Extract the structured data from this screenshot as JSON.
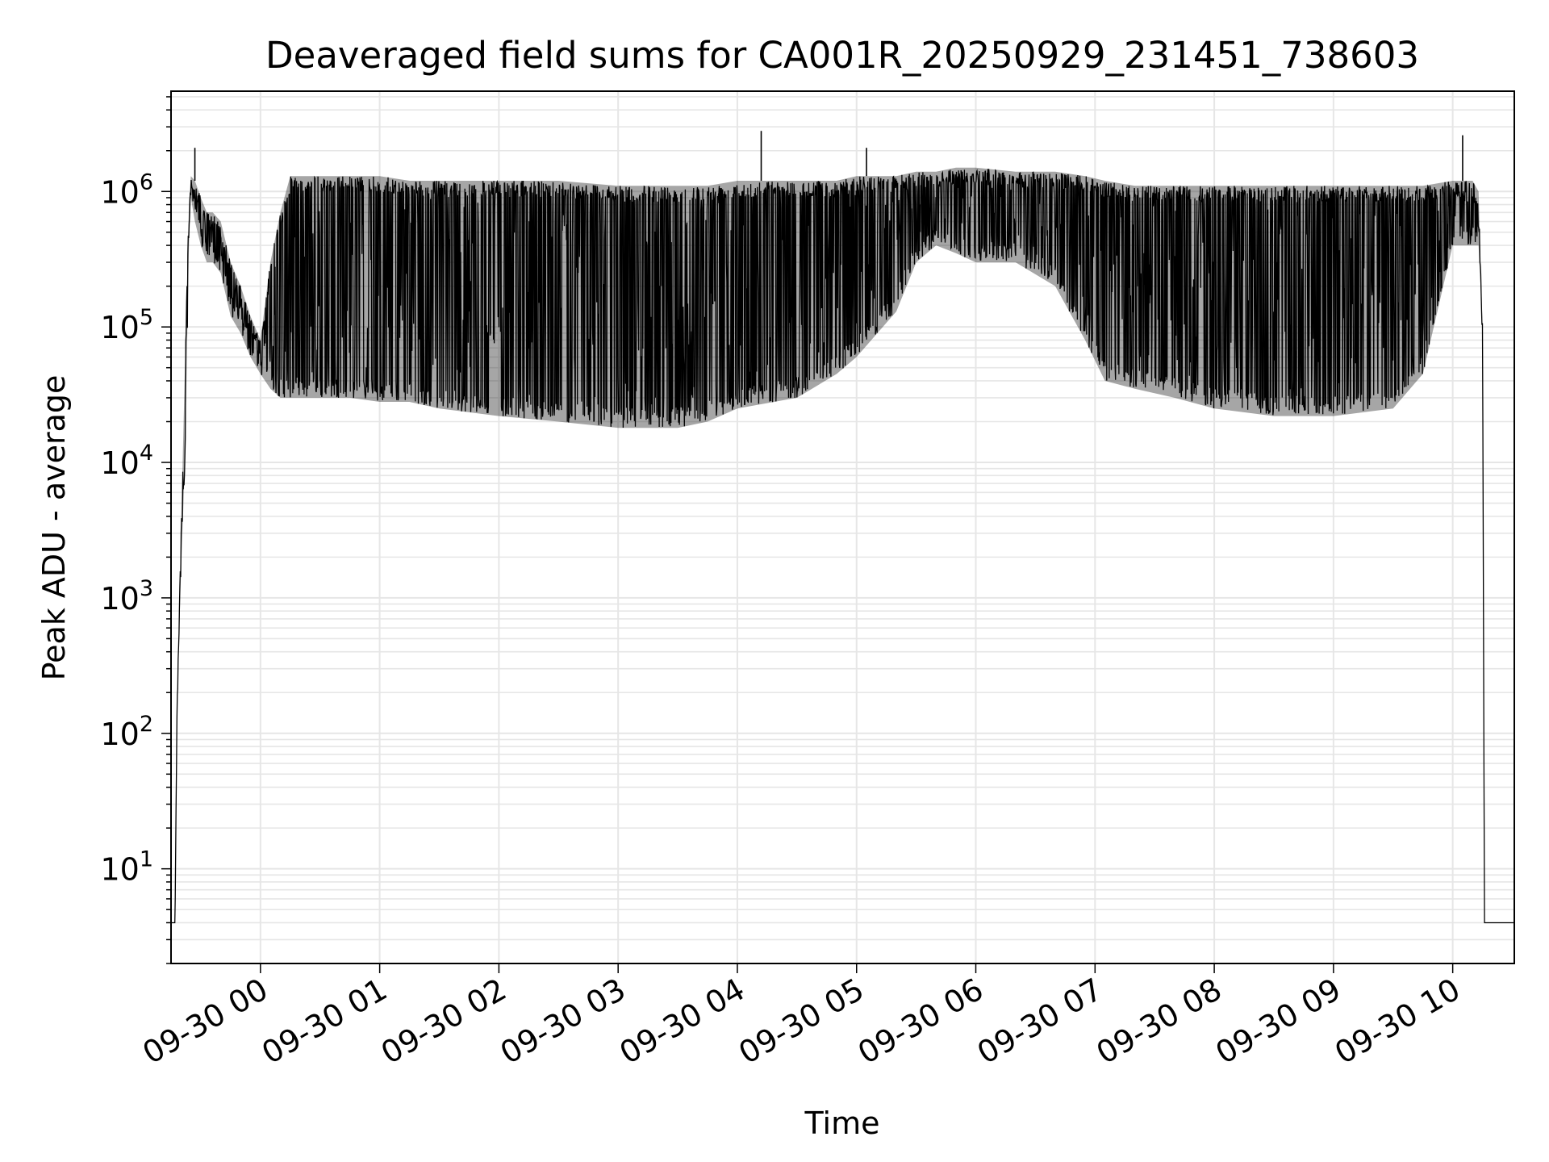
{
  "chart_data": {
    "type": "line",
    "title": "Deaveraged field sums for CA001R_20250929_231451_738603",
    "xlabel": "Time",
    "ylabel": "Peak ADU - average",
    "yscale": "log",
    "ylim": [
      2,
      5500000
    ],
    "xlim": [
      "2025-09-29 23:15",
      "2025-09-30 10:31"
    ],
    "grid": true,
    "line_color": "#000000",
    "grid_color": "#e6e6e6",
    "x_ticks": [
      {
        "label": "09-30 00",
        "value": "2025-09-30 00:00"
      },
      {
        "label": "09-30 01",
        "value": "2025-09-30 01:00"
      },
      {
        "label": "09-30 02",
        "value": "2025-09-30 02:00"
      },
      {
        "label": "09-30 03",
        "value": "2025-09-30 03:00"
      },
      {
        "label": "09-30 04",
        "value": "2025-09-30 04:00"
      },
      {
        "label": "09-30 05",
        "value": "2025-09-30 05:00"
      },
      {
        "label": "09-30 06",
        "value": "2025-09-30 06:00"
      },
      {
        "label": "09-30 07",
        "value": "2025-09-30 07:00"
      },
      {
        "label": "09-30 08",
        "value": "2025-09-30 08:00"
      },
      {
        "label": "09-30 09",
        "value": "2025-09-30 09:00"
      },
      {
        "label": "09-30 10",
        "value": "2025-09-30 10:00"
      }
    ],
    "y_ticks": [
      {
        "base": "10",
        "exp": "1",
        "value": 10
      },
      {
        "base": "10",
        "exp": "2",
        "value": 100
      },
      {
        "base": "10",
        "exp": "3",
        "value": 1000
      },
      {
        "base": "10",
        "exp": "4",
        "value": 10000
      },
      {
        "base": "10",
        "exp": "5",
        "value": 100000
      },
      {
        "base": "10",
        "exp": "6",
        "value": 1000000
      }
    ],
    "series": [
      {
        "x": [
          "2025-09-29 23:15",
          "2025-09-29 23:17",
          "2025-09-29 23:18",
          "2025-09-29 23:20",
          "2025-09-29 23:22",
          "2025-09-29 23:24",
          "2025-09-29 23:25",
          "2025-09-29 23:27",
          "2025-09-29 23:30",
          "2025-09-29 23:33",
          "2025-09-29 23:36",
          "2025-09-29 23:40",
          "2025-09-29 23:45",
          "2025-09-29 23:50",
          "2025-09-29 23:55",
          "2025-09-30 00:00",
          "2025-09-30 00:05",
          "2025-09-30 00:10",
          "2025-09-30 00:15",
          "2025-09-30 00:30",
          "2025-09-30 00:45",
          "2025-09-30 01:00",
          "2025-09-30 01:15",
          "2025-09-30 01:30",
          "2025-09-30 02:00",
          "2025-09-30 02:30",
          "2025-09-30 03:00",
          "2025-09-30 03:30",
          "2025-09-30 03:45",
          "2025-09-30 04:00",
          "2025-09-30 04:30",
          "2025-09-30 04:50",
          "2025-09-30 05:00",
          "2025-09-30 05:20",
          "2025-09-30 05:30",
          "2025-09-30 05:40",
          "2025-09-30 05:50",
          "2025-09-30 06:00",
          "2025-09-30 06:20",
          "2025-09-30 06:40",
          "2025-09-30 06:55",
          "2025-09-30 07:05",
          "2025-09-30 07:20",
          "2025-09-30 07:40",
          "2025-09-30 08:00",
          "2025-09-30 08:30",
          "2025-09-30 09:00",
          "2025-09-30 09:30",
          "2025-09-30 09:45",
          "2025-09-30 10:00",
          "2025-09-30 10:10",
          "2025-09-30 10:13",
          "2025-09-30 10:15",
          "2025-09-30 10:16",
          "2025-09-30 10:31"
        ],
        "upper": [
          4,
          4,
          150,
          3000,
          50000,
          800000,
          1300000,
          1200000,
          900000,
          700000,
          700000,
          600000,
          300000,
          200000,
          120000,
          80000,
          300000,
          700000,
          1300000,
          1300000,
          1300000,
          1300000,
          1200000,
          1200000,
          1200000,
          1200000,
          1100000,
          1100000,
          1100000,
          1200000,
          1200000,
          1200000,
          1300000,
          1300000,
          1400000,
          1400000,
          1500000,
          1500000,
          1400000,
          1400000,
          1300000,
          1200000,
          1100000,
          1100000,
          1100000,
          1100000,
          1100000,
          1100000,
          1100000,
          1200000,
          1200000,
          1000000,
          100000,
          4,
          4
        ],
        "lower": [
          4,
          4,
          150,
          1500,
          10000,
          400000,
          900000,
          600000,
          400000,
          300000,
          300000,
          250000,
          120000,
          90000,
          60000,
          45000,
          35000,
          30000,
          30000,
          30000,
          30000,
          28000,
          28000,
          25000,
          22000,
          20000,
          18000,
          18000,
          20000,
          25000,
          30000,
          45000,
          60000,
          130000,
          300000,
          400000,
          350000,
          300000,
          300000,
          200000,
          80000,
          40000,
          35000,
          30000,
          25000,
          22000,
          22000,
          25000,
          45000,
          400000,
          400000,
          400000,
          100000,
          4,
          4
        ]
      }
    ],
    "spikes": [
      {
        "x": "2025-09-29 23:27",
        "y": 2100000
      },
      {
        "x": "2025-09-30 04:12",
        "y": 2800000
      },
      {
        "x": "2025-09-30 05:05",
        "y": 2100000
      },
      {
        "x": "2025-09-30 10:05",
        "y": 2600000
      }
    ]
  }
}
